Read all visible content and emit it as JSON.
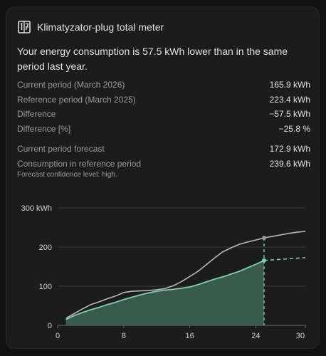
{
  "card": {
    "title": "Klimatyzator-plug total meter",
    "summary": "Your energy consumption is 57.5 kWh lower than in the same period last year."
  },
  "stats": [
    {
      "label": "Current period (March 2026)",
      "value": "165.9 kWh"
    },
    {
      "label": "Reference period (March 2025)",
      "value": "223.4 kWh"
    },
    {
      "label": "Difference",
      "value": "−57.5 kWh"
    },
    {
      "label": "Difference [%]",
      "value": "−25.8 %"
    }
  ],
  "forecast": [
    {
      "label": "Current period forecast",
      "value": "172.9 kWh"
    },
    {
      "label": "Consumption in reference period",
      "value": "239.6 kWh"
    }
  ],
  "note": "Forecast confidence level: high.",
  "icon": "calendar-numbers-icon",
  "colors": {
    "current": "#7fcfae",
    "current_fill": "#3b5e4f",
    "reference": "#b8b8b8",
    "forecast": "#7fcfae"
  },
  "chart_data": {
    "type": "area",
    "xlim": [
      0,
      30
    ],
    "ylim": [
      0,
      300
    ],
    "xticks": [
      0,
      8,
      16,
      24,
      30
    ],
    "yticks": [
      0,
      100,
      200,
      300
    ],
    "ytick_labels": [
      "0",
      "100",
      "200",
      "300 kWh"
    ],
    "grid": true,
    "series": [
      {
        "role": "reference",
        "x": [
          1,
          2,
          3,
          4,
          5,
          6,
          7,
          8,
          9,
          10,
          11,
          12,
          13,
          14,
          15,
          16,
          17,
          18,
          19,
          20,
          21,
          22,
          23,
          24,
          25,
          26,
          27,
          28,
          29,
          30
        ],
        "values": [
          18,
          30,
          42,
          53,
          60,
          68,
          75,
          84,
          87,
          88,
          89,
          91,
          94,
          101,
          112,
          125,
          138,
          155,
          172,
          188,
          198,
          207,
          213,
          218,
          223.4,
          227,
          231,
          235,
          238,
          240
        ]
      },
      {
        "role": "current",
        "x": [
          1,
          2,
          3,
          4,
          5,
          6,
          7,
          8,
          9,
          10,
          11,
          12,
          13,
          14,
          15,
          16,
          17,
          18,
          19,
          20,
          21,
          22,
          23,
          24,
          25
        ],
        "values": [
          15,
          25,
          33,
          40,
          46,
          53,
          59,
          66,
          72,
          78,
          83,
          87,
          90,
          92,
          95,
          98,
          104,
          111,
          118,
          124,
          131,
          138,
          147,
          156,
          165.9
        ]
      },
      {
        "role": "forecast",
        "x": [
          25,
          30
        ],
        "values": [
          165.9,
          172.9
        ]
      }
    ],
    "marker_x": 25
  }
}
